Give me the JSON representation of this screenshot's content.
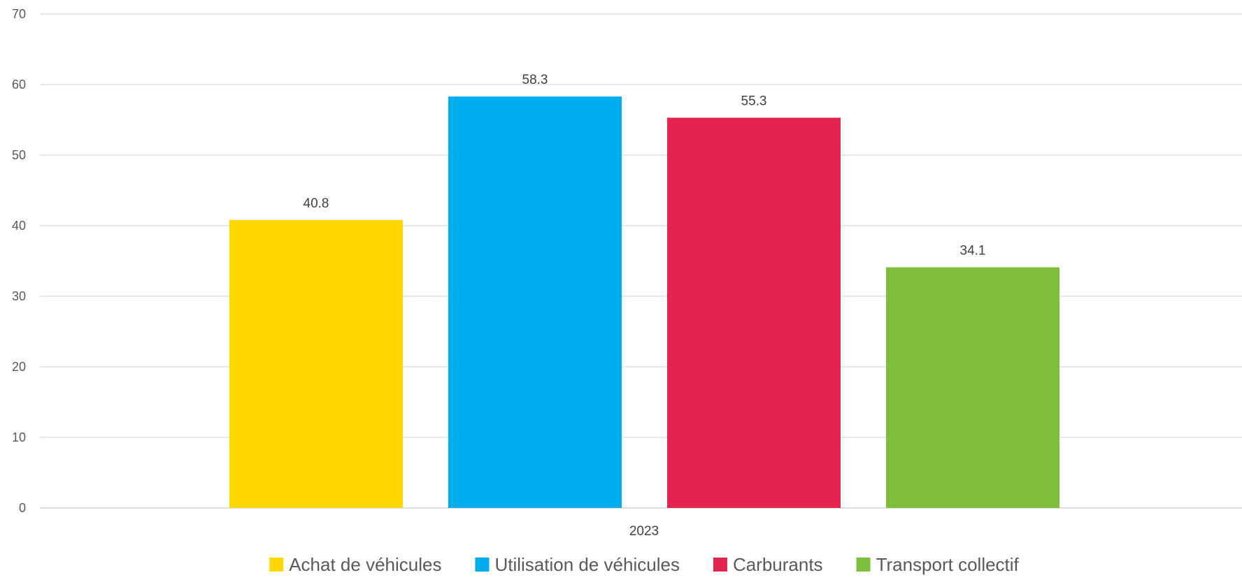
{
  "chart_data": {
    "type": "bar",
    "categories": [
      "2023"
    ],
    "series": [
      {
        "name": "Achat de véhicules",
        "values": [
          40.8
        ],
        "color": "#FFD700"
      },
      {
        "name": "Utilisation de véhicules",
        "values": [
          58.3
        ],
        "color": "#00ADEF"
      },
      {
        "name": "Carburants",
        "values": [
          55.3
        ],
        "color": "#E3244F"
      },
      {
        "name": "Transport collectif",
        "values": [
          34.1
        ],
        "color": "#7FBE3A"
      }
    ],
    "data_labels": [
      "40.8",
      "58.3",
      "55.3",
      "34.1"
    ],
    "ylim": [
      0,
      70
    ],
    "yticks": [
      "0",
      "10",
      "20",
      "30",
      "40",
      "50",
      "60",
      "70"
    ],
    "grid": true,
    "legend_position": "bottom",
    "title": "",
    "xlabel": "",
    "ylabel": ""
  }
}
